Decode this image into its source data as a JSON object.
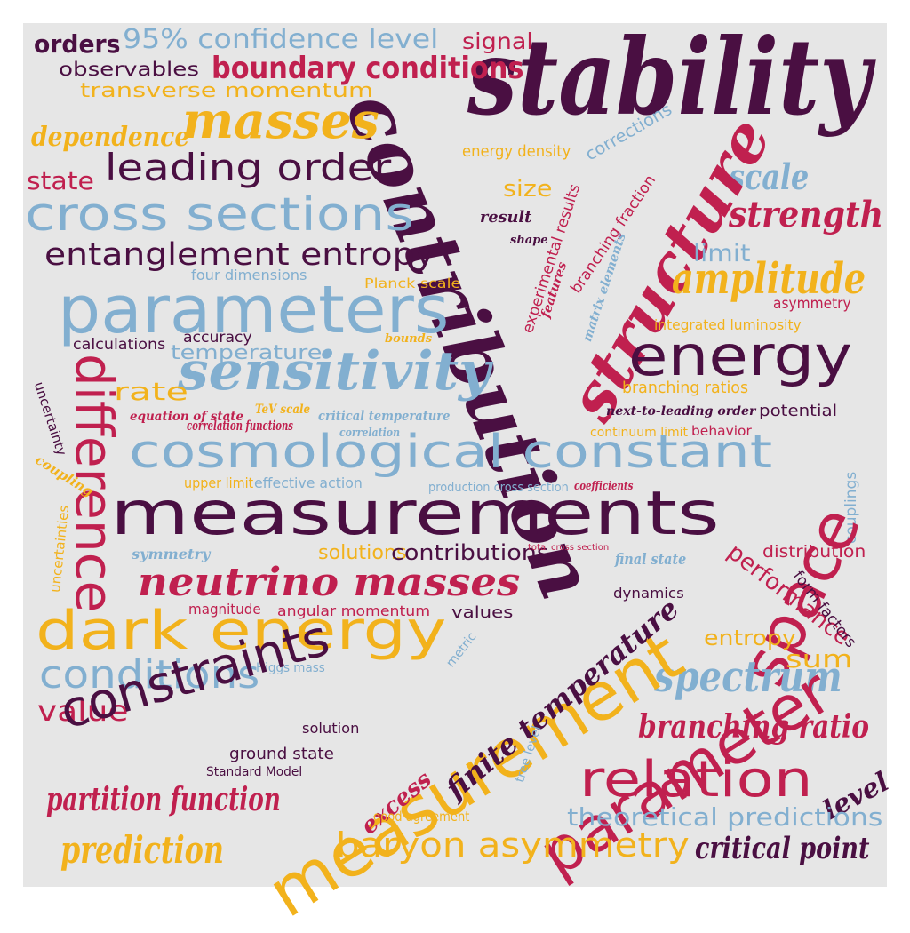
{
  "palette": {
    "dark": "#4a0f42",
    "crimson": "#c0204f",
    "gold": "#f2b21c",
    "blue": "#82afd0",
    "background": "#e6e6e6"
  },
  "words": [
    "stability",
    "contribution",
    "masses",
    "boundary conditions",
    "95% confidence level",
    "orders",
    "observables",
    "signal",
    "transverse momentum",
    "dependence",
    "leading order",
    "state",
    "cross sections",
    "entanglement entropy",
    "parameters",
    "energy density",
    "corrections",
    "scale",
    "structure",
    "strength",
    "size",
    "result",
    "shape",
    "experimental results",
    "branching fraction",
    "limit",
    "amplitude",
    "features",
    "matrix elements",
    "four dimensions",
    "Planck scale",
    "asymmetry",
    "integrated luminosity",
    "calculations",
    "accuracy",
    "bounds",
    "temperature",
    "sensitivity",
    "energy",
    "difference",
    "rate",
    "uncertainty",
    "equation of state",
    "correlation functions",
    "TeV scale",
    "critical temperature",
    "correlation",
    "branching ratios",
    "next-to-leading order",
    "potential",
    "continuum limit",
    "behavior",
    "coupling",
    "cosmological constant",
    "upper limit",
    "effective action",
    "production cross section",
    "coefficients",
    "couplings",
    "space",
    "measurements",
    "uncertainties",
    "symmetry",
    "solutions",
    "contributions",
    "total cross section",
    "final state",
    "distribution",
    "neutrino masses",
    "performance",
    "dynamics",
    "form factors",
    "magnitude",
    "angular momentum",
    "values",
    "dark energy",
    "metric",
    "entropy",
    "sum",
    "Higgs mass",
    "conditions",
    "spectrum",
    "measurement",
    "parameter",
    "value",
    "constraints",
    "finite temperature",
    "branching ratio",
    "solution",
    "ground state",
    "tree level",
    "Standard Model",
    "relation",
    "level",
    "excess",
    "partition function",
    "good agreement",
    "theoretical predictions",
    "prediction",
    "baryon asymmetry",
    "critical point"
  ]
}
